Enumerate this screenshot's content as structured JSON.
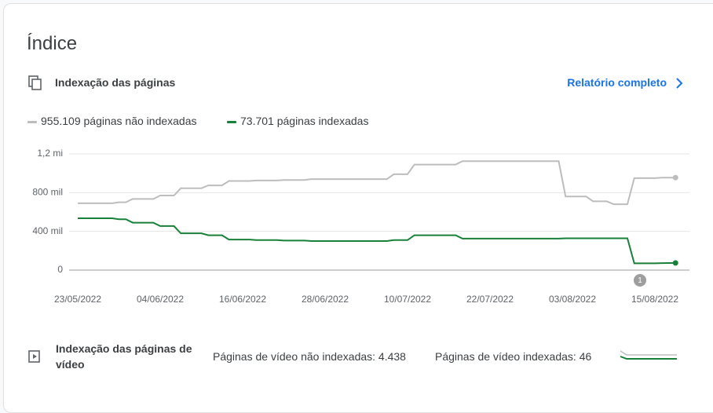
{
  "header": {
    "title": "Índice"
  },
  "section": {
    "title": "Indexação das páginas",
    "link": "Relatório completo"
  },
  "chart_data": {
    "type": "line",
    "categories": [
      "23/05/2022",
      null,
      null,
      null,
      null,
      null,
      null,
      null,
      null,
      null,
      null,
      null,
      "04/06/2022",
      null,
      null,
      null,
      null,
      null,
      null,
      null,
      null,
      null,
      null,
      null,
      "16/06/2022",
      null,
      null,
      null,
      null,
      null,
      null,
      null,
      null,
      null,
      null,
      null,
      "28/06/2022",
      null,
      null,
      null,
      null,
      null,
      null,
      null,
      null,
      null,
      null,
      null,
      "10/07/2022",
      null,
      null,
      null,
      null,
      null,
      null,
      null,
      null,
      null,
      null,
      null,
      "22/07/2022",
      null,
      null,
      null,
      null,
      null,
      null,
      null,
      null,
      null,
      null,
      null,
      "03/08/2022",
      null,
      null,
      null,
      null,
      null,
      null,
      null,
      null,
      null,
      null,
      null,
      "15/08/2022",
      null,
      null,
      null
    ],
    "series": [
      {
        "name": "955.109 páginas não indexadas",
        "color": "#bdbdbd",
        "values": [
          690000,
          690000,
          690000,
          690000,
          690000,
          690000,
          700000,
          700000,
          735000,
          735000,
          735000,
          735000,
          770000,
          770000,
          770000,
          845000,
          845000,
          845000,
          845000,
          875000,
          875000,
          875000,
          920000,
          920000,
          920000,
          920000,
          925000,
          925000,
          925000,
          925000,
          930000,
          930000,
          930000,
          930000,
          940000,
          940000,
          940000,
          940000,
          940000,
          940000,
          940000,
          940000,
          940000,
          940000,
          940000,
          940000,
          990000,
          990000,
          990000,
          1090000,
          1090000,
          1090000,
          1090000,
          1090000,
          1090000,
          1090000,
          1125000,
          1125000,
          1125000,
          1125000,
          1125000,
          1125000,
          1125000,
          1125000,
          1125000,
          1125000,
          1125000,
          1125000,
          1125000,
          1125000,
          1125000,
          760000,
          760000,
          760000,
          760000,
          710000,
          710000,
          710000,
          680000,
          680000,
          680000,
          950000,
          950000,
          950000,
          950000,
          955000,
          955000,
          955109
        ]
      },
      {
        "name": "73.701 páginas indexadas",
        "color": "#188038",
        "values": [
          535000,
          535000,
          535000,
          535000,
          535000,
          535000,
          525000,
          525000,
          490000,
          490000,
          490000,
          490000,
          455000,
          455000,
          455000,
          380000,
          380000,
          380000,
          380000,
          360000,
          360000,
          360000,
          315000,
          315000,
          315000,
          315000,
          310000,
          310000,
          310000,
          310000,
          305000,
          305000,
          305000,
          305000,
          300000,
          300000,
          300000,
          300000,
          300000,
          300000,
          300000,
          300000,
          300000,
          300000,
          300000,
          300000,
          310000,
          310000,
          310000,
          360000,
          360000,
          360000,
          360000,
          360000,
          360000,
          360000,
          325000,
          325000,
          325000,
          325000,
          325000,
          325000,
          325000,
          325000,
          325000,
          325000,
          325000,
          325000,
          325000,
          325000,
          325000,
          328000,
          328000,
          328000,
          328000,
          328000,
          328000,
          328000,
          328000,
          328000,
          328000,
          70000,
          70000,
          70000,
          70000,
          72000,
          73000,
          73701
        ]
      }
    ],
    "ylim": [
      0,
      1200000
    ],
    "yticks": [
      0,
      {
        "value": 400000,
        "label": "400 mil"
      },
      {
        "value": 800000,
        "label": "800 mil"
      },
      {
        "value": 1200000,
        "label": "1,2 mi"
      }
    ],
    "grid": true,
    "annotation": "1"
  },
  "video": {
    "title": "Indexação das páginas de vídeo",
    "not_indexed": "Páginas de vídeo não indexadas: 4.438",
    "indexed": "Páginas de vídeo indexadas: 46"
  }
}
